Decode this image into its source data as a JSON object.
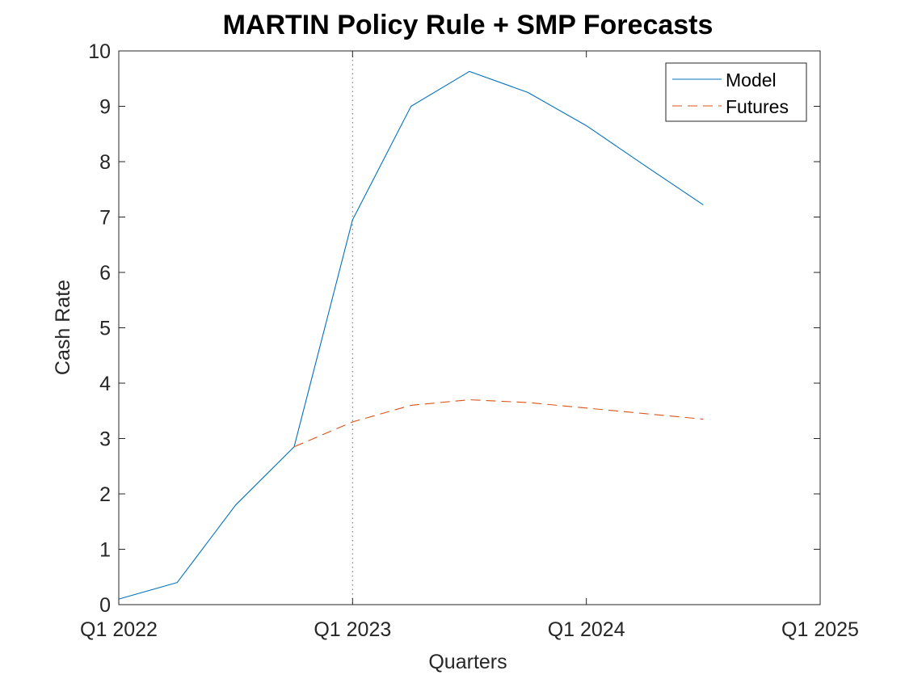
{
  "chart_data": {
    "type": "line",
    "title": "MARTIN Policy Rule + SMP Forecasts",
    "xlabel": "Quarters",
    "ylabel": "Cash Rate",
    "xlim": [
      "Q1 2022",
      "Q1 2025"
    ],
    "ylim": [
      0,
      10
    ],
    "x_ticks": [
      "Q1 2022",
      "Q1 2023",
      "Q1 2024",
      "Q1 2025"
    ],
    "y_ticks": [
      "0",
      "1",
      "2",
      "3",
      "4",
      "5",
      "6",
      "7",
      "8",
      "9",
      "10"
    ],
    "grid": false,
    "legend_position": "top-right",
    "reference_line": {
      "x": "Q1 2023",
      "style": "dotted",
      "color": "#808080"
    },
    "series": [
      {
        "name": "Model",
        "color": "#0072BD",
        "dash": "solid",
        "x": [
          "Q1 2022",
          "Q2 2022",
          "Q3 2022",
          "Q4 2022",
          "Q1 2023",
          "Q2 2023",
          "Q3 2023",
          "Q4 2023",
          "Q1 2024",
          "Q2 2024",
          "Q3 2024"
        ],
        "values": [
          0.1,
          0.4,
          1.8,
          2.85,
          6.95,
          9.0,
          9.63,
          9.25,
          8.65,
          7.93,
          7.22
        ]
      },
      {
        "name": "Futures",
        "color": "#D95319",
        "dash": "dashed",
        "x": [
          "Q4 2022",
          "Q1 2023",
          "Q2 2023",
          "Q3 2023",
          "Q4 2023",
          "Q1 2024",
          "Q2 2024",
          "Q3 2024"
        ],
        "values": [
          2.85,
          3.3,
          3.6,
          3.7,
          3.65,
          3.55,
          3.45,
          3.35
        ]
      }
    ]
  }
}
